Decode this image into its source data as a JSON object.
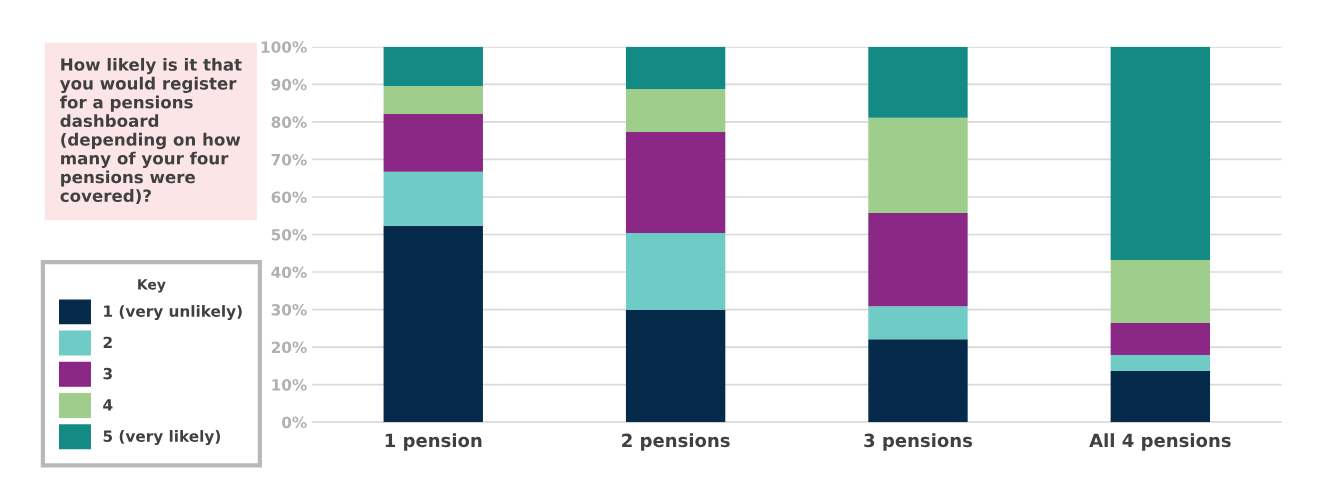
{
  "chart_data": {
    "type": "bar",
    "stacked": true,
    "title": "How likely is it that you would register for a pensions dashboard (depending on how many of your four pensions were covered)?",
    "categories": [
      "1 pension",
      "2 pensions",
      "3 pensions",
      "All 4 pensions"
    ],
    "series": [
      {
        "name": "1 (very unlikely)",
        "color": "#062a4a",
        "values": [
          52.3,
          29.9,
          22.1,
          13.6
        ]
      },
      {
        "name": "2",
        "color": "#6ecbc6",
        "values": [
          14.4,
          20.5,
          8.8,
          4.3
        ]
      },
      {
        "name": "3",
        "color": "#8b2784",
        "values": [
          15.4,
          26.9,
          24.8,
          8.5
        ]
      },
      {
        "name": "4",
        "color": "#9fcd8b",
        "values": [
          7.5,
          11.5,
          25.4,
          16.8
        ]
      },
      {
        "name": "5 (very likely)",
        "color": "#138a84",
        "values": [
          10.4,
          11.2,
          18.9,
          56.8
        ]
      }
    ],
    "legend_title": "Key",
    "legend": "left",
    "ylim": [
      0,
      100
    ],
    "yticks": [
      {
        "value": 0,
        "label": "0%"
      },
      {
        "value": 10,
        "label": "10%"
      },
      {
        "value": 20,
        "label": "20%"
      },
      {
        "value": 30,
        "label": "30%"
      },
      {
        "value": 40,
        "label": "40%"
      },
      {
        "value": 50,
        "label": "50%"
      },
      {
        "value": 60,
        "label": "60%"
      },
      {
        "value": 70,
        "label": "70%"
      },
      {
        "value": 80,
        "label": "80%"
      },
      {
        "value": 90,
        "label": "90%"
      },
      {
        "value": 100,
        "label": "100%"
      }
    ],
    "grid": "y"
  }
}
